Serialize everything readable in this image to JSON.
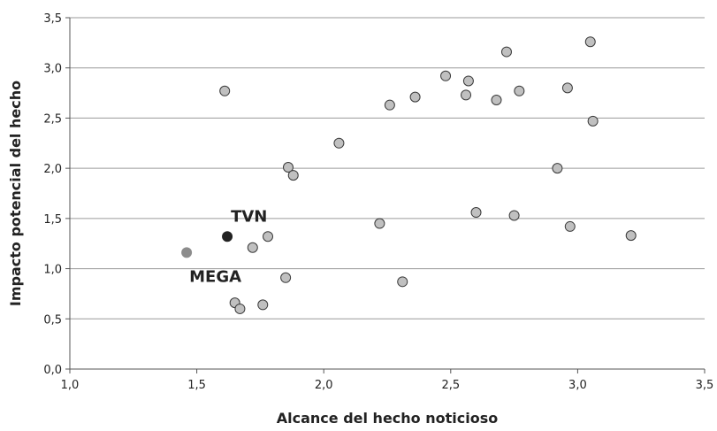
{
  "chart_data": {
    "type": "scatter",
    "xlabel": "Alcance del hecho noticioso",
    "ylabel": "Impacto potencial del hecho",
    "xlim": [
      1.0,
      3.5
    ],
    "ylim": [
      0.0,
      3.5
    ],
    "xticks": [
      "1,0",
      "1,5",
      "2,0",
      "2,5",
      "3,0",
      "3,5"
    ],
    "yticks": [
      "0,0",
      "0,5",
      "1,0",
      "1,5",
      "2,0",
      "2,5",
      "3,0",
      "3,5"
    ],
    "grid": "horizontal",
    "points": [
      {
        "x": 1.61,
        "y": 2.77
      },
      {
        "x": 1.65,
        "y": 0.66
      },
      {
        "x": 1.67,
        "y": 0.6
      },
      {
        "x": 1.72,
        "y": 1.21
      },
      {
        "x": 1.76,
        "y": 0.64
      },
      {
        "x": 1.78,
        "y": 1.32
      },
      {
        "x": 1.85,
        "y": 0.91
      },
      {
        "x": 1.86,
        "y": 2.01
      },
      {
        "x": 1.88,
        "y": 1.93
      },
      {
        "x": 2.06,
        "y": 2.25
      },
      {
        "x": 2.22,
        "y": 1.45
      },
      {
        "x": 2.26,
        "y": 2.63
      },
      {
        "x": 2.31,
        "y": 0.87
      },
      {
        "x": 2.36,
        "y": 2.71
      },
      {
        "x": 2.48,
        "y": 2.92
      },
      {
        "x": 2.56,
        "y": 2.73
      },
      {
        "x": 2.57,
        "y": 2.87
      },
      {
        "x": 2.6,
        "y": 1.56
      },
      {
        "x": 2.68,
        "y": 2.68
      },
      {
        "x": 2.72,
        "y": 3.16
      },
      {
        "x": 2.75,
        "y": 1.53
      },
      {
        "x": 2.77,
        "y": 2.77
      },
      {
        "x": 2.92,
        "y": 2.0
      },
      {
        "x": 2.96,
        "y": 2.8
      },
      {
        "x": 2.97,
        "y": 1.42
      },
      {
        "x": 3.05,
        "y": 3.26
      },
      {
        "x": 3.06,
        "y": 2.47
      },
      {
        "x": 3.21,
        "y": 1.33
      }
    ],
    "highlighted": [
      {
        "name": "TVN",
        "x": 1.62,
        "y": 1.32,
        "color": "#222222",
        "label_pos": "above-right"
      },
      {
        "name": "MEGA",
        "x": 1.46,
        "y": 1.16,
        "color": "#8c8c8c",
        "label_pos": "below-right"
      }
    ],
    "colors": {
      "point_fill": "#c0c0c0",
      "point_stroke": "#3a3a3a",
      "grid": "#9a9a9a",
      "axis": "#555555"
    }
  }
}
